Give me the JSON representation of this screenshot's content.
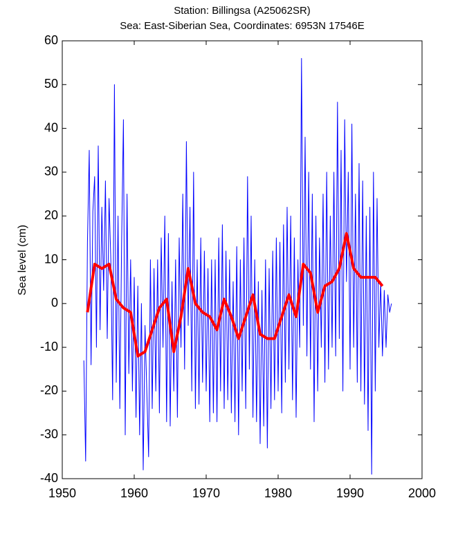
{
  "chart_data": {
    "type": "line",
    "title": [
      "Station: Billingsa (A25062SR)",
      "Sea: East-Siberian Sea, Coordinates: 6953N 17546E"
    ],
    "ylabel": "Sea level (cm)",
    "xlim": [
      1950,
      2000
    ],
    "xticks": [
      1950,
      1960,
      1970,
      1980,
      1990,
      2000
    ],
    "ylim": [
      -40,
      60
    ],
    "yticks": [
      -40,
      -30,
      -20,
      -10,
      0,
      10,
      20,
      30,
      40,
      50,
      60
    ],
    "series": [
      {
        "color": "#0000ff",
        "width": 1,
        "x": [
          1953,
          1953.25,
          1953.5,
          1953.75,
          1954,
          1954.25,
          1954.5,
          1954.75,
          1955,
          1955.25,
          1955.5,
          1955.75,
          1956,
          1956.25,
          1956.5,
          1956.75,
          1957,
          1957.25,
          1957.5,
          1957.75,
          1958,
          1958.25,
          1958.5,
          1958.75,
          1959,
          1959.25,
          1959.5,
          1959.75,
          1960,
          1960.25,
          1960.5,
          1960.75,
          1961,
          1961.25,
          1961.5,
          1961.75,
          1962,
          1962.25,
          1962.5,
          1962.75,
          1963,
          1963.25,
          1963.5,
          1963.75,
          1964,
          1964.25,
          1964.5,
          1964.75,
          1965,
          1965.25,
          1965.5,
          1965.75,
          1966,
          1966.25,
          1966.5,
          1966.75,
          1967,
          1967.25,
          1967.5,
          1967.75,
          1968,
          1968.25,
          1968.5,
          1968.75,
          1969,
          1969.25,
          1969.5,
          1969.75,
          1970,
          1970.25,
          1970.5,
          1970.75,
          1971,
          1971.25,
          1971.5,
          1971.75,
          1972,
          1972.25,
          1972.5,
          1972.75,
          1973,
          1973.25,
          1973.5,
          1973.75,
          1974,
          1974.25,
          1974.5,
          1974.75,
          1975,
          1975.25,
          1975.5,
          1975.75,
          1976,
          1976.25,
          1976.5,
          1976.75,
          1977,
          1977.25,
          1977.5,
          1977.75,
          1978,
          1978.25,
          1978.5,
          1978.75,
          1979,
          1979.25,
          1979.5,
          1979.75,
          1980,
          1980.25,
          1980.5,
          1980.75,
          1981,
          1981.25,
          1981.5,
          1981.75,
          1982,
          1982.25,
          1982.5,
          1982.75,
          1983,
          1983.25,
          1983.5,
          1983.75,
          1984,
          1984.25,
          1984.5,
          1984.75,
          1985,
          1985.25,
          1985.5,
          1985.75,
          1986,
          1986.25,
          1986.5,
          1986.75,
          1987,
          1987.25,
          1987.5,
          1987.75,
          1988,
          1988.25,
          1988.5,
          1988.75,
          1989,
          1989.25,
          1989.5,
          1989.75,
          1990,
          1990.25,
          1990.5,
          1990.75,
          1991,
          1991.25,
          1991.5,
          1991.75,
          1992,
          1992.25,
          1992.5,
          1992.75,
          1993,
          1993.25,
          1993.5,
          1993.75,
          1994,
          1994.25,
          1994.5,
          1994.75,
          1995,
          1995.25,
          1995.5,
          1995.75
        ],
        "values": [
          -13,
          -36,
          14,
          35,
          -14,
          21,
          29,
          -10,
          36,
          -6,
          22,
          3,
          28,
          -8,
          24,
          10,
          -22,
          50,
          -18,
          20,
          -24,
          14,
          42,
          -30,
          25,
          -16,
          10,
          -20,
          6,
          -26,
          4,
          -30,
          0,
          -38,
          -5,
          -20,
          -35,
          10,
          -24,
          8,
          -20,
          10,
          -25,
          15,
          -10,
          20,
          -27,
          16,
          -28,
          5,
          -20,
          10,
          -26,
          15,
          -10,
          25,
          -15,
          37,
          -5,
          22,
          -20,
          30,
          -24,
          10,
          -23,
          15,
          -18,
          12,
          -20,
          8,
          -27,
          10,
          -25,
          10,
          -27,
          15,
          -20,
          18,
          -24,
          12,
          -22,
          10,
          -25,
          5,
          -27,
          13,
          -30,
          10,
          -20,
          15,
          -24,
          29,
          -15,
          20,
          -26,
          10,
          -27,
          5,
          -32,
          3,
          -28,
          10,
          -33,
          8,
          -24,
          12,
          -22,
          15,
          -20,
          14,
          -25,
          18,
          -18,
          22,
          -15,
          20,
          -22,
          15,
          -26,
          10,
          -10,
          56,
          -5,
          38,
          -12,
          30,
          -15,
          25,
          -27,
          20,
          -20,
          15,
          -10,
          25,
          -18,
          30,
          -15,
          20,
          -10,
          30,
          -12,
          46,
          -8,
          35,
          -20,
          42,
          5,
          30,
          -15,
          41,
          -10,
          25,
          -18,
          32,
          -20,
          28,
          -23,
          20,
          -29,
          22,
          -39,
          30,
          -20,
          24,
          -10,
          5,
          -12,
          3,
          -10,
          2,
          -2,
          0
        ]
      },
      {
        "color": "#ff0000",
        "width": 4,
        "x": [
          1953.5,
          1954.5,
          1955.5,
          1956.5,
          1957.5,
          1958.5,
          1959.5,
          1960.5,
          1961.5,
          1962.5,
          1963.5,
          1964.5,
          1965.5,
          1966.5,
          1967.5,
          1968.5,
          1969.5,
          1970.5,
          1971.5,
          1972.5,
          1973.5,
          1974.5,
          1975.5,
          1976.5,
          1977.5,
          1978.5,
          1979.5,
          1980.5,
          1981.5,
          1982.5,
          1983.5,
          1984.5,
          1985.5,
          1986.5,
          1987.5,
          1988.5,
          1989.5,
          1990.5,
          1991.5,
          1992.5,
          1993.5,
          1994.5
        ],
        "values": [
          -2,
          9,
          8,
          9,
          1,
          -1,
          -2,
          -12,
          -11,
          -6,
          -1,
          1,
          -11,
          -3,
          8,
          0,
          -2,
          -3,
          -6,
          1,
          -3,
          -8,
          -3,
          2,
          -7,
          -8,
          -8,
          -3,
          2,
          -3,
          9,
          7,
          -2,
          4,
          5,
          8,
          16,
          8,
          6,
          6,
          6,
          4
        ]
      }
    ]
  }
}
